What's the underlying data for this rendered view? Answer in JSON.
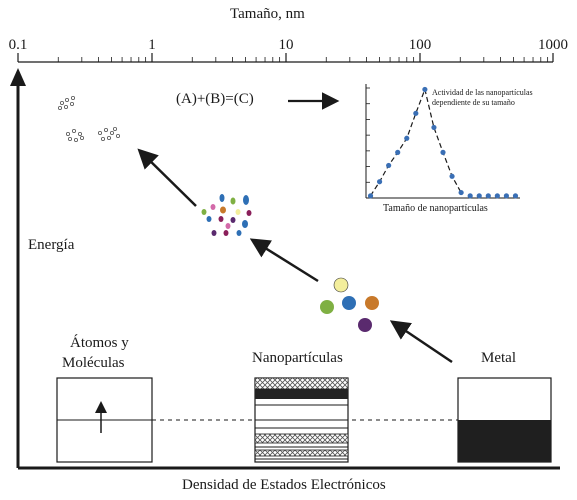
{
  "top_axis": {
    "title": "Tamaño, nm",
    "ticks": [
      "0.1",
      "1",
      "10",
      "100",
      "1000"
    ]
  },
  "y_axis_label": "Energía",
  "x_axis_label": "Densidad de Estados Electrónicos",
  "equation": "(A)+(B)=(C)",
  "inset": {
    "title_line1": "Actividad de las nanopartículas",
    "title_line2": "dependiente de su tamaño",
    "xlabel": "Tamaño de nanopartículas",
    "point_color": "#3a6fb5"
  },
  "boxes": {
    "atoms_line1": "Átomos y",
    "atoms_line2": "Moléculas",
    "nano": "Nanopartículas",
    "metal": "Metal"
  },
  "particle_colors": {
    "cluster": [
      "#f3ee9c",
      "#7fb043",
      "#2e6fb5",
      "#c8792a",
      "#5a2a6e"
    ],
    "small": [
      "#2e6fb5",
      "#d36aa9",
      "#7fb043",
      "#c8792a",
      "#8a1f5a",
      "#5a2a6e",
      "#f3ee9c"
    ]
  },
  "chart_data": {
    "type": "scatter",
    "title": "Actividad de las nanopartículas dependiente de su tamaño",
    "xlabel": "Tamaño de nanopartículas",
    "ylabel": "",
    "x": [
      1,
      2,
      3,
      4,
      5,
      6,
      7,
      8,
      9,
      10,
      11,
      12,
      13,
      14,
      15,
      16,
      17
    ],
    "values": [
      0.02,
      0.15,
      0.3,
      0.42,
      0.55,
      0.78,
      1.0,
      0.65,
      0.42,
      0.2,
      0.05,
      0.02,
      0.02,
      0.02,
      0.02,
      0.02,
      0.02
    ],
    "ylim": [
      0,
      1.05
    ],
    "xlim": [
      0.5,
      17.5
    ],
    "grid": false
  }
}
